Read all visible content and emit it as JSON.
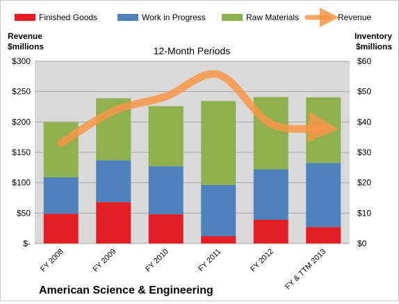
{
  "chart_data": {
    "type": "bar",
    "stacked": true,
    "title": "12-Month Periods",
    "company": "American Science & Engineering",
    "categories": [
      "FY 2008",
      "FY 2009",
      "FY 2010",
      "FY 2011",
      "FY 2012",
      "FY & TTM 2013"
    ],
    "y_left": {
      "label_line1": "Revenue",
      "label_line2": "$millions",
      "ticks": [
        "$-",
        "$50",
        "$100",
        "$150",
        "$200",
        "$250",
        "$300"
      ],
      "range": [
        0,
        300
      ]
    },
    "y_right": {
      "label_line1": "Inventory",
      "label_line2": "$millions",
      "ticks": [
        "$0",
        "$10",
        "$20",
        "$30",
        "$40",
        "$50",
        "$60"
      ],
      "range": [
        0,
        60
      ]
    },
    "series": [
      {
        "name": "Finished Goods",
        "axis": "right",
        "color": "#e31e24",
        "values": [
          9.8,
          13.6,
          9.6,
          2.4,
          7.8,
          5.4
        ]
      },
      {
        "name": "Work in Progress",
        "axis": "right",
        "color": "#4f81bd",
        "values": [
          12.0,
          13.8,
          15.8,
          16.9,
          16.6,
          21.1
        ]
      },
      {
        "name": "Raw Materials",
        "axis": "right",
        "color": "#8fb04f",
        "values": [
          18.1,
          20.4,
          19.8,
          27.6,
          23.8,
          21.6
        ]
      },
      {
        "name": "Revenue",
        "axis": "left",
        "type": "line",
        "color": "#f79646",
        "values": [
          165,
          218,
          242,
          278,
          197,
          190
        ]
      }
    ],
    "grid": true,
    "legend_position": "top"
  }
}
